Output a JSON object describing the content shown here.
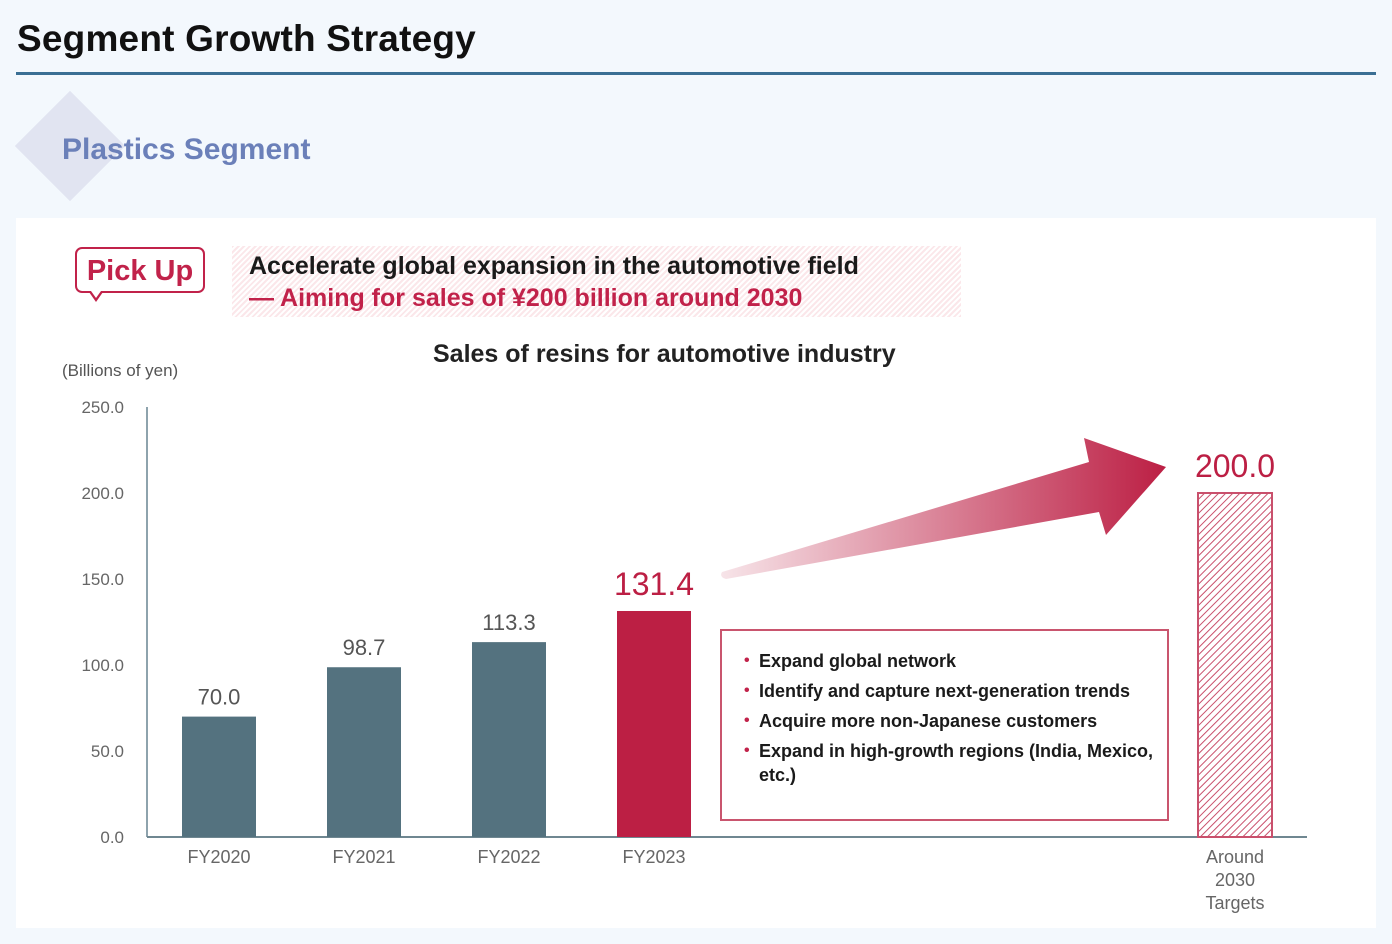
{
  "page": {
    "title": "Segment Growth Strategy",
    "section_title": "Plastics Segment"
  },
  "pickup": {
    "badge": "Pick Up",
    "headline": "Accelerate global expansion in the automotive field",
    "subheadline": "— Aiming for sales of ¥200 billion around 2030"
  },
  "colors": {
    "actual_bar": "#54727f",
    "highlight": "#bc1f44",
    "title_rule": "#3a6f94",
    "section_title": "#6b80b9"
  },
  "bullets": [
    {
      "text": "Expand global network"
    },
    {
      "text": "Identify and capture next-generation trends"
    },
    {
      "text": "Acquire more non-Japanese customers"
    },
    {
      "text": "Expand in high-growth regions (India, Mexico, etc.)"
    }
  ],
  "chart_data": {
    "type": "bar",
    "title": "Sales of resins for automotive industry",
    "ylabel": "(Billions of yen)",
    "xlabel": "",
    "ylim": [
      0,
      250
    ],
    "yticks": [
      "0.0",
      "50.0",
      "100.0",
      "150.0",
      "200.0",
      "250.0"
    ],
    "grid": false,
    "categories": [
      "FY2020",
      "FY2021",
      "FY2022",
      "FY2023",
      "Around 2030 Targets"
    ],
    "values": [
      70.0,
      98.7,
      113.3,
      131.4,
      200.0
    ],
    "labels": [
      "70.0",
      "98.7",
      "113.3",
      "131.4",
      "200.0"
    ],
    "styles": [
      "actual",
      "actual",
      "actual",
      "highlight",
      "target-hatched"
    ],
    "annotation": "arrow from FY2023 to Around 2030 Targets"
  }
}
